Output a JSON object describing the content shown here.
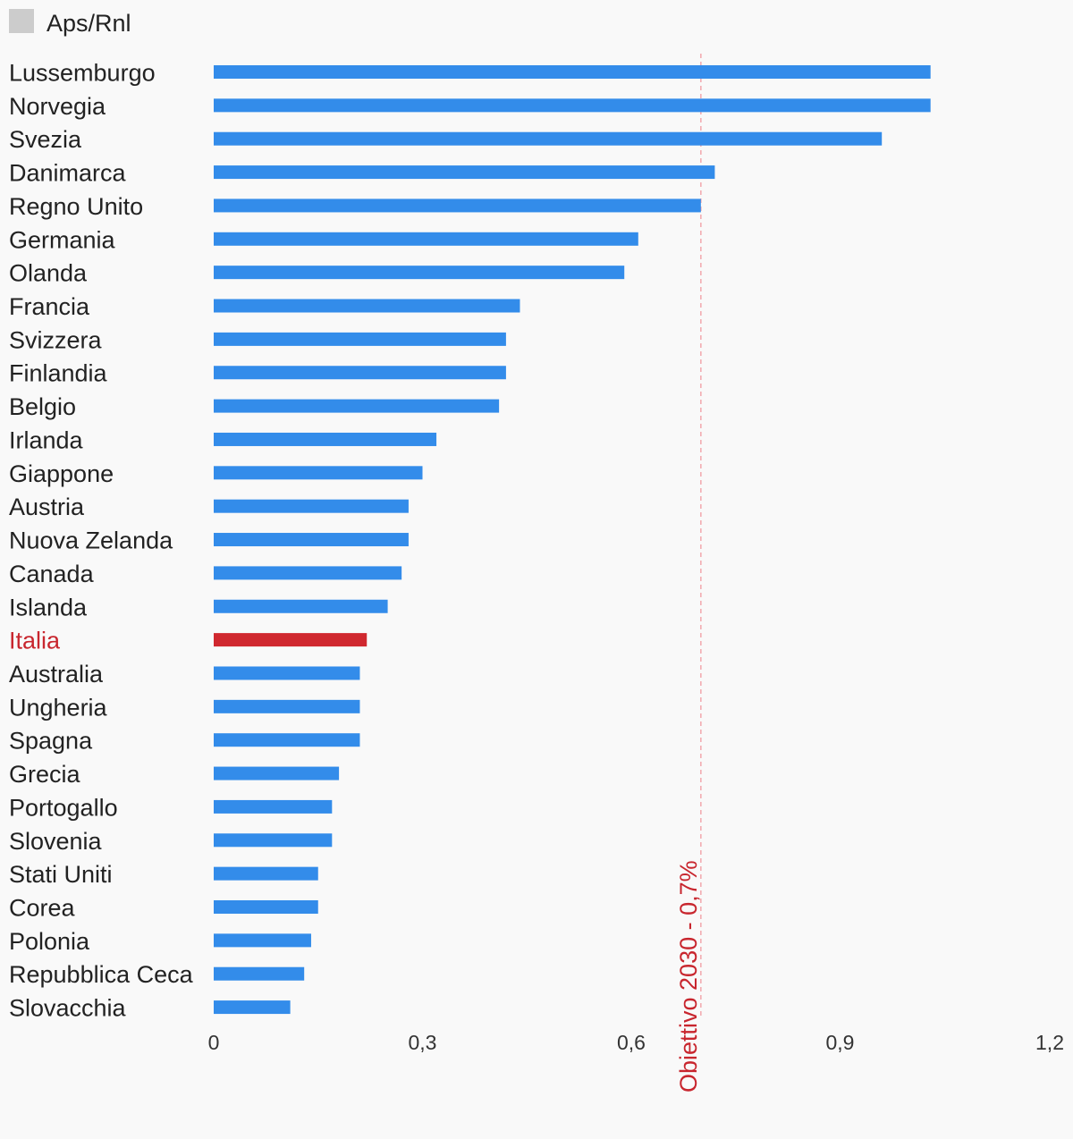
{
  "chart_data": {
    "type": "bar",
    "orientation": "horizontal",
    "legend": {
      "label": "Aps/Rnl",
      "color": "#cccccc",
      "placement": "top-left"
    },
    "categories": [
      "Lussemburgo",
      "Norvegia",
      "Svezia",
      "Danimarca",
      "Regno Unito",
      "Germania",
      "Olanda",
      "Francia",
      "Svizzera",
      "Finlandia",
      "Belgio",
      "Irlanda",
      "Giappone",
      "Austria",
      "Nuova Zelanda",
      "Canada",
      "Islanda",
      "Italia",
      "Australia",
      "Ungheria",
      "Spagna",
      "Grecia",
      "Portogallo",
      "Slovenia",
      "Stati Uniti",
      "Corea",
      "Polonia",
      "Repubblica Ceca",
      "Slovacchia"
    ],
    "series": [
      {
        "values": [
          1.03,
          1.03,
          0.96,
          0.72,
          0.7,
          0.61,
          0.59,
          0.44,
          0.42,
          0.42,
          0.41,
          0.32,
          0.3,
          0.28,
          0.28,
          0.27,
          0.25,
          0.22,
          0.21,
          0.21,
          0.21,
          0.18,
          0.17,
          0.17,
          0.15,
          0.15,
          0.14,
          0.13,
          0.11
        ],
        "color": "#338cea"
      }
    ],
    "highlight": {
      "category": "Italia",
      "color": "#d0282f"
    },
    "x_ticks": [
      {
        "value": 0,
        "label": "0"
      },
      {
        "value": 0.3,
        "label": "0,3"
      },
      {
        "value": 0.6,
        "label": "0,6"
      },
      {
        "value": 0.9,
        "label": "0,9"
      },
      {
        "value": 1.2,
        "label": "1,2"
      }
    ],
    "xlim": [
      0,
      1.2
    ],
    "reference_line": {
      "value": 0.7,
      "label": "Obiettivo 2030 - 0,7%",
      "color": "#f2a8ad"
    },
    "grid": false
  }
}
